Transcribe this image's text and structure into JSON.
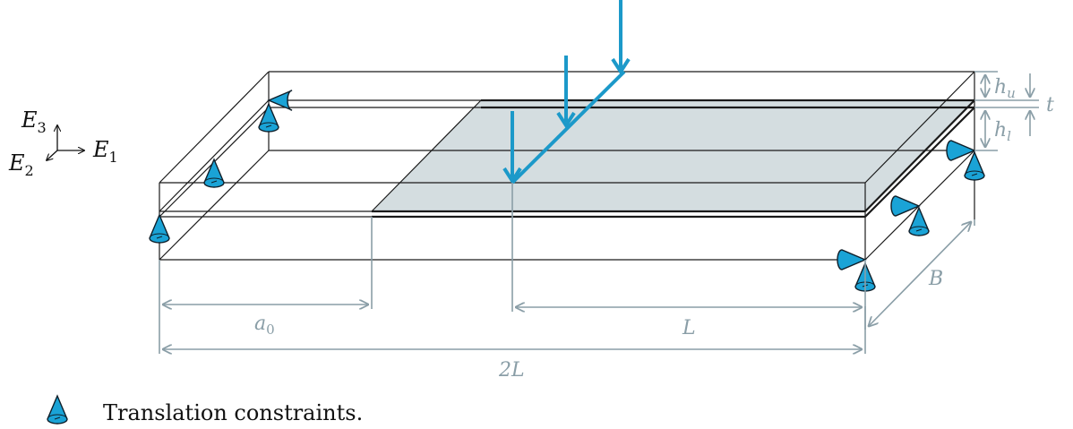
{
  "colors": {
    "load": "#1c99c9",
    "constraint": "#1aa3d6",
    "crack_plane": "#d4dde0",
    "dimension": "#8a9ea7",
    "edge": "#1a1a1a"
  },
  "axes": {
    "e1": {
      "base": "E",
      "sub": "1"
    },
    "e2": {
      "base": "E",
      "sub": "2"
    },
    "e3": {
      "base": "E",
      "sub": "3"
    }
  },
  "dimensions": {
    "hu": {
      "base": "h",
      "sub": "u"
    },
    "t": "t",
    "hl": {
      "base": "h",
      "sub": "l"
    },
    "a0": {
      "base": "a",
      "sub": "0"
    },
    "L": "L",
    "two_L": "2L",
    "B": "B"
  },
  "legend": {
    "icon": "cone-icon",
    "label": "Translation constraints."
  }
}
